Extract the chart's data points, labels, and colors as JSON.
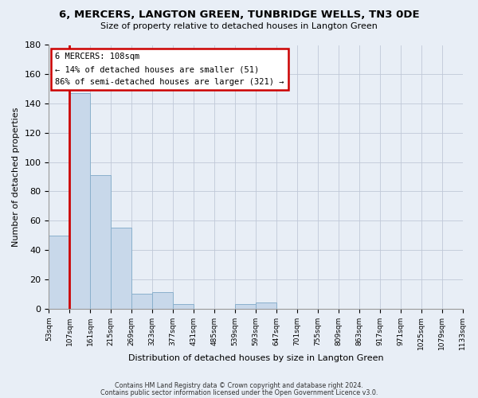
{
  "title": "6, MERCERS, LANGTON GREEN, TUNBRIDGE WELLS, TN3 0DE",
  "subtitle": "Size of property relative to detached houses in Langton Green",
  "xlabel": "Distribution of detached houses by size in Langton Green",
  "ylabel": "Number of detached properties",
  "bar_color": "#c8d8ea",
  "bar_edge_color": "#8ab0cc",
  "property_line_color": "#cc0000",
  "annotation_box_color": "#ffffff",
  "annotation_border_color": "#cc0000",
  "background_color": "#e8eef6",
  "grid_color": "#c0c8d8",
  "bins": [
    "53sqm",
    "107sqm",
    "161sqm",
    "215sqm",
    "269sqm",
    "323sqm",
    "377sqm",
    "431sqm",
    "485sqm",
    "539sqm",
    "593sqm",
    "647sqm",
    "701sqm",
    "755sqm",
    "809sqm",
    "863sqm",
    "917sqm",
    "971sqm",
    "1025sqm",
    "1079sqm",
    "1133sqm"
  ],
  "values": [
    50,
    147,
    91,
    55,
    10,
    11,
    3,
    0,
    0,
    3,
    4,
    0,
    0,
    0,
    0,
    0,
    0,
    0,
    0,
    0
  ],
  "property_label": "6 MERCERS: 108sqm",
  "annotation_line1": "← 14% of detached houses are smaller (51)",
  "annotation_line2": "86% of semi-detached houses are larger (321) →",
  "ylim": [
    0,
    180
  ],
  "yticks": [
    0,
    20,
    40,
    60,
    80,
    100,
    120,
    140,
    160,
    180
  ],
  "footnote1": "Contains HM Land Registry data © Crown copyright and database right 2024.",
  "footnote2": "Contains public sector information licensed under the Open Government Licence v3.0."
}
